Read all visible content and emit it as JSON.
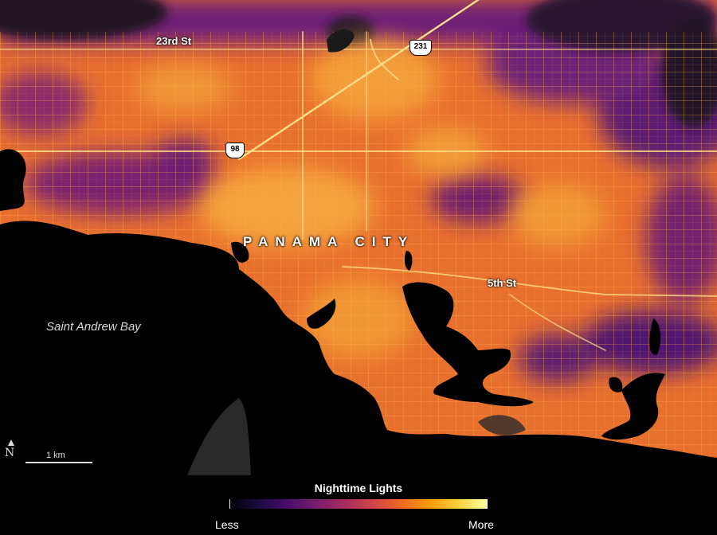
{
  "map": {
    "city_label": "PANAMA CITY",
    "streets": [
      "23rd St",
      "5th St"
    ],
    "routes": [
      "231",
      "98"
    ],
    "water_label": "Saint Andrew Bay",
    "north_symbol": "N",
    "scale_label": "1 km"
  },
  "legend": {
    "title": "Nighttime Lights",
    "low_label": "Less",
    "high_label": "More",
    "colors": [
      "#000004",
      "#1b0c41",
      "#4a0c6b",
      "#781c6d",
      "#a52c60",
      "#cf4446",
      "#ed6925",
      "#fb9b06",
      "#f7d13d",
      "#fcffa4"
    ]
  }
}
